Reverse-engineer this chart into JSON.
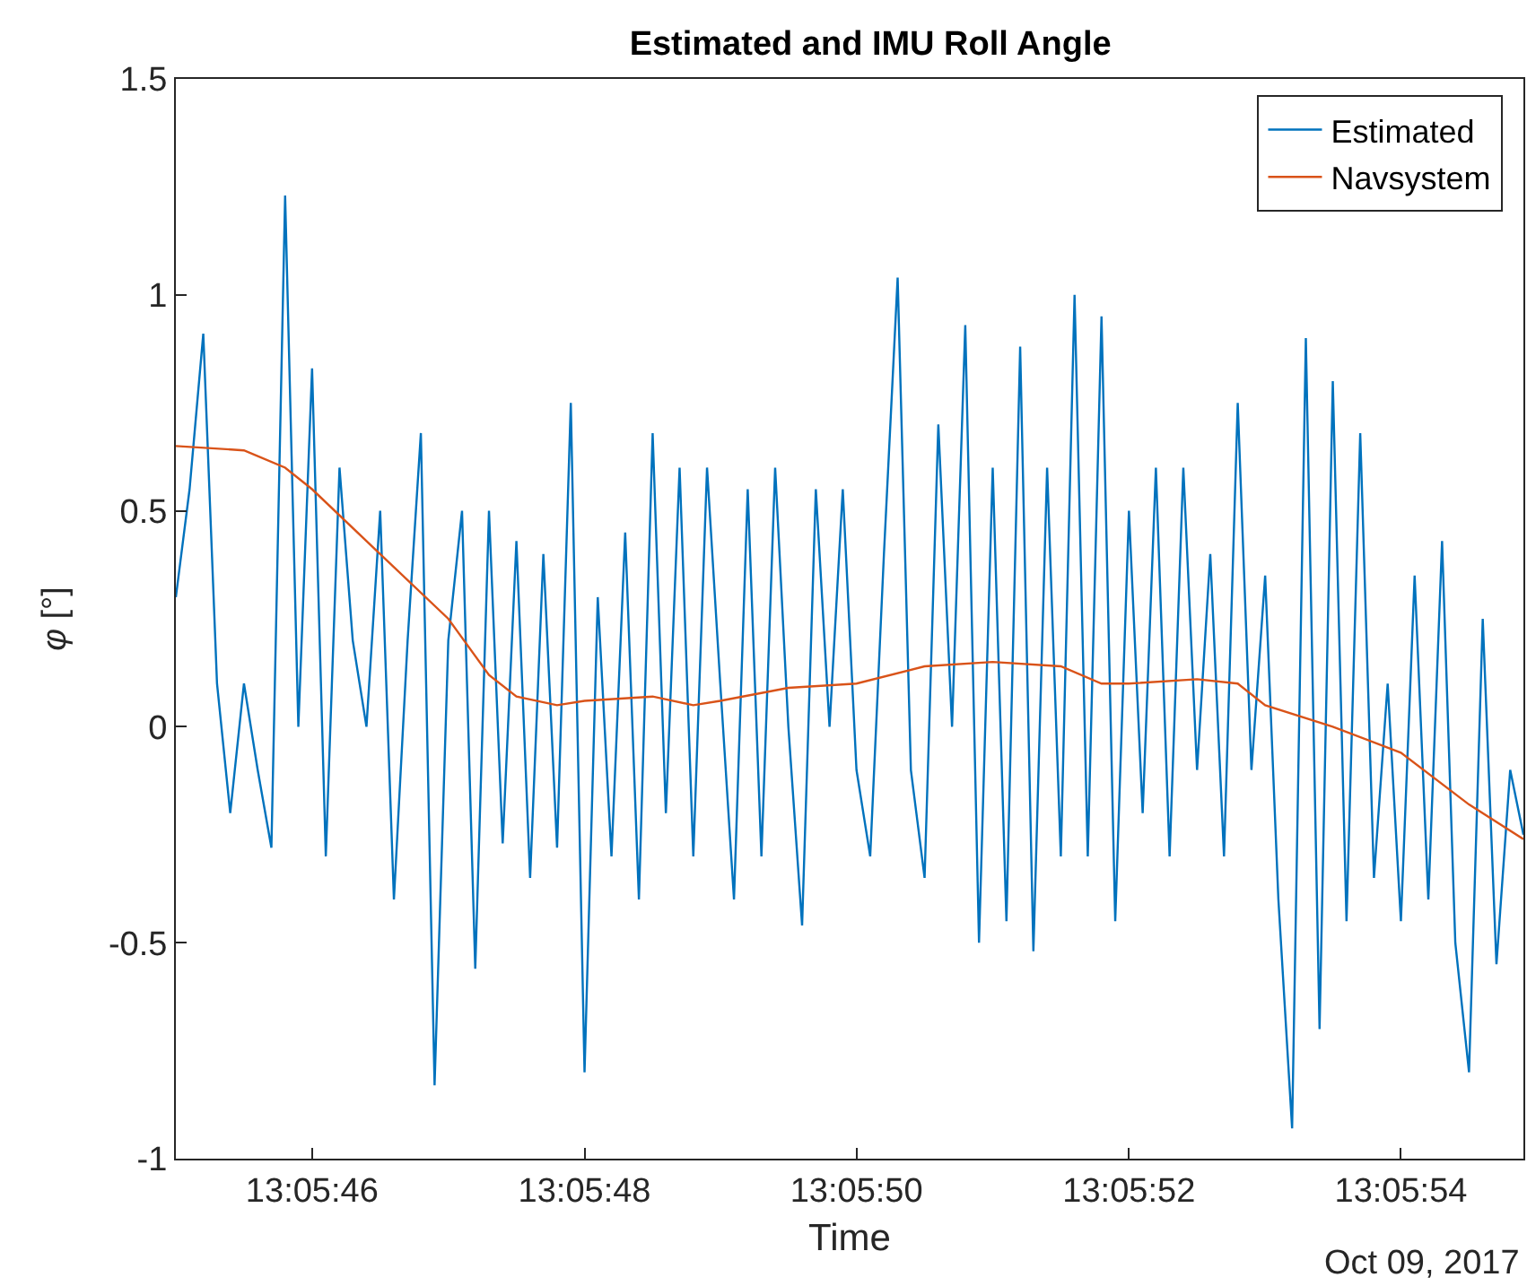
{
  "chart_data": {
    "type": "line",
    "title": "Estimated and IMU Roll Angle",
    "xlabel": "Time",
    "ylabel": "φ [°]",
    "annotations": [
      "Oct 09, 2017"
    ],
    "xlim": [
      13.095833,
      13.098583
    ],
    "xticks": [
      {
        "value": 13.096111,
        "label": "13:05:46"
      },
      {
        "value": 13.096667,
        "label": "13:05:48"
      },
      {
        "value": 13.097222,
        "label": "13:05:50"
      },
      {
        "value": 13.097778,
        "label": "13:05:52"
      },
      {
        "value": 13.098333,
        "label": "13:05:54"
      }
    ],
    "ylim": [
      -1,
      1.5
    ],
    "yticks": [
      -1,
      -0.5,
      0,
      0.5,
      1,
      1.5
    ],
    "grid": false,
    "legend": "top right",
    "line_style": "solid",
    "marker": "none",
    "series": [
      {
        "name": "Estimated",
        "color": "#0072bd",
        "x": [
          13.095833,
          13.095861,
          13.095889,
          13.095917,
          13.095944,
          13.095972,
          13.096,
          13.096028,
          13.096056,
          13.096083,
          13.096111,
          13.096139,
          13.096167,
          13.096194,
          13.096222,
          13.09625,
          13.096278,
          13.096306,
          13.096333,
          13.096361,
          13.096389,
          13.096417,
          13.096444,
          13.096472,
          13.0965,
          13.096528,
          13.096556,
          13.096583,
          13.096611,
          13.096639,
          13.096667,
          13.096694,
          13.096722,
          13.09675,
          13.096778,
          13.096806,
          13.096833,
          13.096861,
          13.096889,
          13.096917,
          13.096944,
          13.096972,
          13.097,
          13.097028,
          13.097056,
          13.097083,
          13.097111,
          13.097139,
          13.097167,
          13.097194,
          13.097222,
          13.09725,
          13.097278,
          13.097306,
          13.097333,
          13.097361,
          13.097389,
          13.097417,
          13.097444,
          13.097472,
          13.0975,
          13.097528,
          13.097556,
          13.097583,
          13.097611,
          13.097639,
          13.097667,
          13.097694,
          13.097722,
          13.09775,
          13.097778,
          13.097806,
          13.097833,
          13.097861,
          13.097889,
          13.097917,
          13.097944,
          13.097972,
          13.098,
          13.098028,
          13.098056,
          13.098083,
          13.098111,
          13.098139,
          13.098167,
          13.098194,
          13.098222,
          13.09825,
          13.098278,
          13.098306,
          13.098333,
          13.098361,
          13.098389,
          13.098417,
          13.098444,
          13.098472,
          13.0985,
          13.098528,
          13.098556,
          13.098583
        ],
        "values": [
          0.3,
          0.55,
          0.91,
          0.1,
          -0.2,
          0.1,
          -0.1,
          -0.28,
          1.23,
          0.0,
          0.83,
          -0.3,
          0.6,
          0.2,
          0.0,
          0.5,
          -0.4,
          0.2,
          0.68,
          -0.83,
          0.2,
          0.5,
          -0.56,
          0.5,
          -0.27,
          0.43,
          -0.35,
          0.4,
          -0.28,
          0.75,
          -0.8,
          0.3,
          -0.3,
          0.45,
          -0.4,
          0.68,
          -0.2,
          0.6,
          -0.3,
          0.6,
          0.1,
          -0.4,
          0.55,
          -0.3,
          0.6,
          0.0,
          -0.46,
          0.55,
          0.0,
          0.55,
          -0.1,
          -0.3,
          0.4,
          1.04,
          -0.1,
          -0.35,
          0.7,
          0.0,
          0.93,
          -0.5,
          0.6,
          -0.45,
          0.88,
          -0.52,
          0.6,
          -0.3,
          1.0,
          -0.3,
          0.95,
          -0.45,
          0.5,
          -0.2,
          0.6,
          -0.3,
          0.6,
          -0.1,
          0.4,
          -0.3,
          0.75,
          -0.1,
          0.35,
          -0.4,
          -0.93,
          0.9,
          -0.7,
          0.8,
          -0.45,
          0.68,
          -0.35,
          0.1,
          -0.45,
          0.35,
          -0.4,
          0.43,
          -0.5,
          -0.8,
          0.25,
          -0.55,
          -0.1,
          -0.25
        ]
      },
      {
        "name": "Navsystem",
        "color": "#d95319",
        "x": [
          13.095833,
          13.095972,
          13.096056,
          13.096111,
          13.09625,
          13.096389,
          13.096472,
          13.096528,
          13.096611,
          13.096667,
          13.096806,
          13.096889,
          13.096944,
          13.097083,
          13.097222,
          13.097361,
          13.0975,
          13.097639,
          13.097722,
          13.097778,
          13.097917,
          13.098,
          13.098056,
          13.098194,
          13.098333,
          13.098472,
          13.098583
        ],
        "values": [
          0.65,
          0.64,
          0.6,
          0.55,
          0.4,
          0.25,
          0.12,
          0.07,
          0.05,
          0.06,
          0.07,
          0.05,
          0.06,
          0.09,
          0.1,
          0.14,
          0.15,
          0.14,
          0.1,
          0.1,
          0.11,
          0.1,
          0.05,
          0.0,
          -0.06,
          -0.18,
          -0.26
        ]
      }
    ]
  }
}
